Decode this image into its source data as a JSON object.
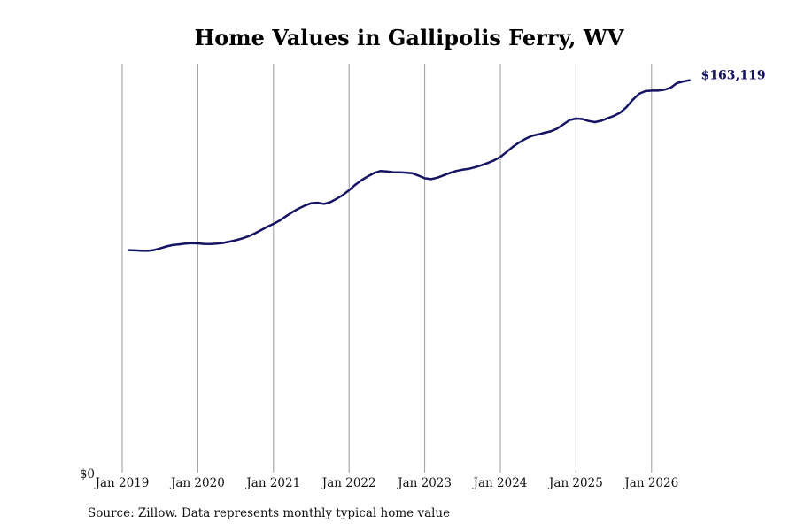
{
  "chart_data": {
    "type": "line",
    "title": "Home Values in Gallipolis Ferry, WV",
    "xlabel": "",
    "ylabel": "",
    "x_ticks": [
      "Jan 2019",
      "Jan 2020",
      "Jan 2021",
      "Jan 2022",
      "Jan 2023",
      "Jan 2024",
      "Jan 2025",
      "Jan 2026"
    ],
    "y_ticks": [
      "$0"
    ],
    "ylim": [
      0,
      170000
    ],
    "grid": "vertical",
    "line_color": "#141464",
    "end_label": "$163,119",
    "series": [
      {
        "x": [
          "2019-02",
          "2019-03",
          "2019-04",
          "2019-05",
          "2019-06",
          "2019-07",
          "2019-08",
          "2019-09",
          "2019-10",
          "2019-11",
          "2019-12",
          "2020-01",
          "2020-02",
          "2020-03",
          "2020-04",
          "2020-05",
          "2020-06",
          "2020-07",
          "2020-08",
          "2020-09",
          "2020-10",
          "2020-11",
          "2020-12",
          "2021-01",
          "2021-02",
          "2021-03",
          "2021-04",
          "2021-05",
          "2021-06",
          "2021-07",
          "2021-08",
          "2021-09",
          "2021-10",
          "2021-11",
          "2021-12",
          "2022-01",
          "2022-02",
          "2022-03",
          "2022-04",
          "2022-05",
          "2022-06",
          "2022-07",
          "2022-08",
          "2022-09",
          "2022-10",
          "2022-11",
          "2022-12",
          "2023-01",
          "2023-02",
          "2023-03",
          "2023-04",
          "2023-05",
          "2023-06",
          "2023-07",
          "2023-08",
          "2023-09",
          "2023-10",
          "2023-11",
          "2023-12",
          "2024-01",
          "2024-02",
          "2024-03",
          "2024-04",
          "2024-05",
          "2024-06",
          "2024-07",
          "2024-08",
          "2024-09",
          "2024-10",
          "2024-11",
          "2024-12",
          "2025-01",
          "2025-02",
          "2025-03",
          "2025-04",
          "2025-05",
          "2025-06",
          "2025-07",
          "2025-08",
          "2025-09",
          "2025-10",
          "2025-11",
          "2025-12",
          "2026-01",
          "2026-02",
          "2026-03",
          "2026-04",
          "2026-05",
          "2026-06",
          "2026-07"
        ],
        "values": [
          92500,
          92400,
          92300,
          92200,
          92500,
          93200,
          94000,
          94600,
          94900,
          95200,
          95400,
          95300,
          95100,
          95000,
          95200,
          95500,
          96000,
          96600,
          97300,
          98200,
          99400,
          100800,
          102200,
          103400,
          104800,
          106600,
          108300,
          109800,
          111000,
          112000,
          112200,
          111700,
          112400,
          113800,
          115400,
          117400,
          119700,
          121600,
          123200,
          124600,
          125400,
          125200,
          124900,
          124800,
          124700,
          124500,
          123500,
          122400,
          122000,
          122600,
          123600,
          124600,
          125400,
          125900,
          126300,
          127000,
          127800,
          128700,
          129800,
          131200,
          133300,
          135500,
          137300,
          138800,
          140000,
          140600,
          141300,
          141900,
          143000,
          144800,
          146600,
          147200,
          147000,
          146200,
          145700,
          146300,
          147300,
          148300,
          149600,
          151900,
          155000,
          157500,
          158600,
          158800,
          158800,
          159200,
          160000,
          161900,
          162600,
          163119
        ]
      }
    ]
  },
  "source": "Source: Zillow. Data represents monthly typical home value"
}
